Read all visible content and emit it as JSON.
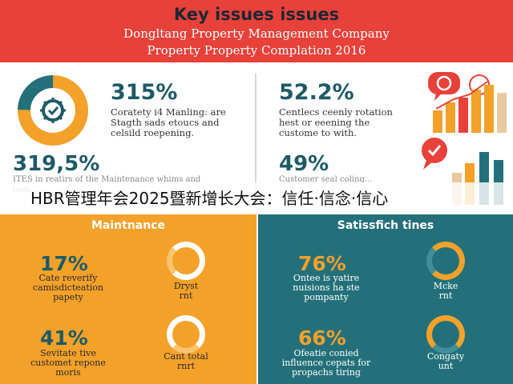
{
  "header": {
    "title": "Key issues issues",
    "subtitle1": "Dongltang Property Management Company",
    "subtitle2": "Property Property Complation 2016"
  },
  "stats": [
    {
      "value": "315%",
      "text": "Coratety i4 Manling: are\nStagth sads etoucs and\ncelsild roepening."
    },
    {
      "value": "52.2%",
      "text": "Centlecs ceenly rotation\nhest or eeening the\ncustome to with."
    },
    {
      "value": "319,5%",
      "text": "ITES in reatirs of the Maintenance whims and\ntech..."
    },
    {
      "value": "49%",
      "text": "Customer seal coling..."
    }
  ],
  "overlay_text": "HBR管理年会2025暨新增长大会：信任·信念·信心",
  "panels": {
    "left_title": "Maintnance",
    "right_title": "Satissfich tines",
    "left_items": [
      {
        "value": "17%",
        "text": "Cate reverify\ncamisdicteation\npapety",
        "ring_label": "Dryst\nrnt",
        "ring_pct": 75
      },
      {
        "value": "41%",
        "text": "Sevitate tive\ncustomet repone\nmoris",
        "ring_label": "Cant total\nrnrt",
        "ring_pct": 70
      }
    ],
    "right_items": [
      {
        "value": "76%",
        "text": "Ontee is yatire\nnuisions ha ste\npompanty",
        "ring_label": "Mcke\nrnt",
        "ring_pct": 76
      },
      {
        "value": "66%",
        "text": "Ofeatie conied\ninfluence cepats for\npropachs tiring",
        "ring_label": "Congaty\nunt",
        "ring_pct": 66
      }
    ]
  },
  "colors": {
    "red": "#e8413a",
    "orange": "#f4a12a",
    "teal": "#24707a",
    "navy": "#1d5a66"
  },
  "icons": [
    "gear-donut-icon",
    "chat-chart-icon",
    "checkmark-bubble-icon",
    "bar-chart-icon"
  ]
}
